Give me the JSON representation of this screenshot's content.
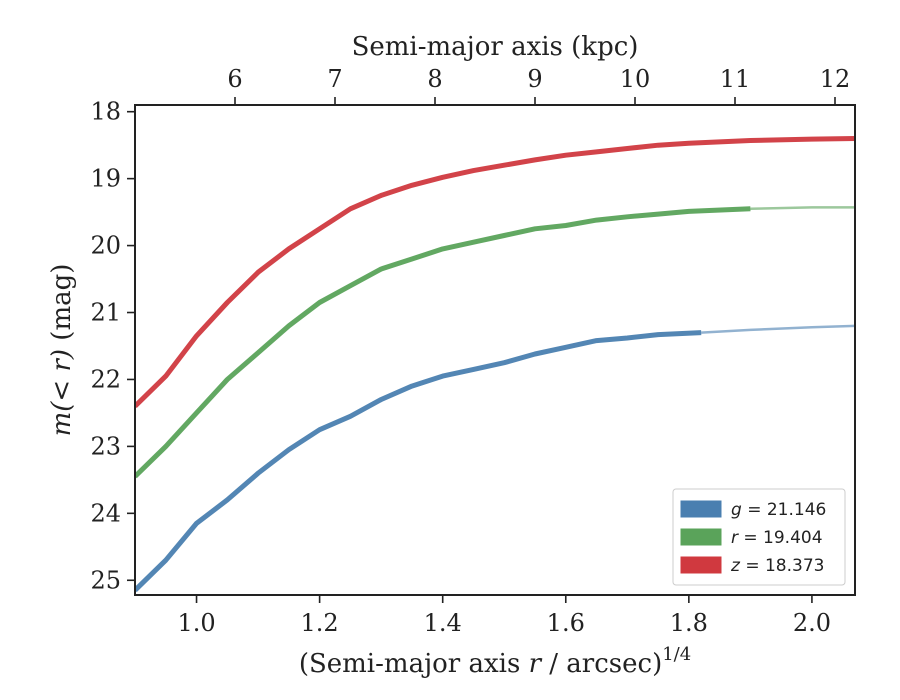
{
  "chart_data": {
    "type": "line",
    "xlabel": "(Semi-major axis r / arcsec)^1/4",
    "xlabel_parts": {
      "prefix": "(Semi-major axis ",
      "var": "r",
      "mid": " / arcsec)",
      "sup": "1/4"
    },
    "ylabel": "m(< r) (mag)",
    "ylabel_parts": {
      "var": "m(< r)",
      "unit": " (mag)"
    },
    "x2label": "Semi-major axis (kpc)",
    "xlim": [
      0.9,
      2.07
    ],
    "ylim": [
      25.22,
      17.9
    ],
    "y_inverted": true,
    "xticks": [
      "1.0",
      "1.2",
      "1.4",
      "1.6",
      "1.8",
      "2.0"
    ],
    "yticks": [
      "18",
      "19",
      "20",
      "21",
      "22",
      "23",
      "24",
      "25"
    ],
    "x2ticks": [
      {
        "label": "6",
        "x": 0.947
      },
      {
        "label": "7",
        "x": 1.0335
      },
      {
        "label": "8",
        "x": 1.119
      },
      {
        "label": "9",
        "x": 1.204
      },
      {
        "label": "10",
        "x": 1.289
      },
      {
        "label": "11",
        "x": 1.375
      },
      {
        "label": "12",
        "x": 1.4605
      }
    ],
    "legend_position": "lower-right",
    "series": [
      {
        "name": "g = 21.146",
        "band": "g",
        "value": "21.146",
        "color": "#4a7fb0",
        "x": [
          0.9,
          0.95,
          1.0,
          1.05,
          1.1,
          1.15,
          1.2,
          1.25,
          1.3,
          1.35,
          1.4,
          1.45,
          1.5,
          1.55,
          1.6,
          1.65,
          1.7,
          1.75,
          1.82
        ],
        "y": [
          25.15,
          24.7,
          24.15,
          23.8,
          23.4,
          23.05,
          22.75,
          22.55,
          22.3,
          22.1,
          21.95,
          21.85,
          21.75,
          21.62,
          21.52,
          21.42,
          21.38,
          21.33,
          21.3
        ],
        "extension_x": [
          1.82,
          1.9,
          2.0,
          2.07
        ],
        "extension_y": [
          21.3,
          21.26,
          21.22,
          21.2
        ]
      },
      {
        "name": "r = 19.404",
        "band": "r",
        "value": "19.404",
        "color": "#5aa35a",
        "x": [
          0.9,
          0.95,
          1.0,
          1.05,
          1.1,
          1.15,
          1.2,
          1.25,
          1.3,
          1.35,
          1.4,
          1.45,
          1.5,
          1.55,
          1.6,
          1.65,
          1.7,
          1.75,
          1.8,
          1.9
        ],
        "y": [
          23.45,
          23.0,
          22.5,
          22.0,
          21.6,
          21.2,
          20.85,
          20.6,
          20.35,
          20.2,
          20.05,
          19.95,
          19.85,
          19.75,
          19.7,
          19.62,
          19.57,
          19.53,
          19.49,
          19.45
        ],
        "extension_x": [
          1.9,
          2.0,
          2.07
        ],
        "extension_y": [
          19.45,
          19.43,
          19.43
        ]
      },
      {
        "name": "z = 18.373",
        "band": "z",
        "value": "18.373",
        "color": "#d0393f",
        "x": [
          0.9,
          0.95,
          1.0,
          1.05,
          1.1,
          1.15,
          1.2,
          1.25,
          1.3,
          1.35,
          1.4,
          1.45,
          1.5,
          1.55,
          1.6,
          1.65,
          1.7,
          1.75,
          1.8,
          1.9,
          2.0,
          2.07
        ],
        "y": [
          22.4,
          21.95,
          21.35,
          20.85,
          20.4,
          20.05,
          19.75,
          19.45,
          19.25,
          19.1,
          18.98,
          18.88,
          18.8,
          18.72,
          18.65,
          18.6,
          18.55,
          18.5,
          18.47,
          18.43,
          18.41,
          18.4
        ],
        "extension_x": [],
        "extension_y": []
      }
    ]
  }
}
